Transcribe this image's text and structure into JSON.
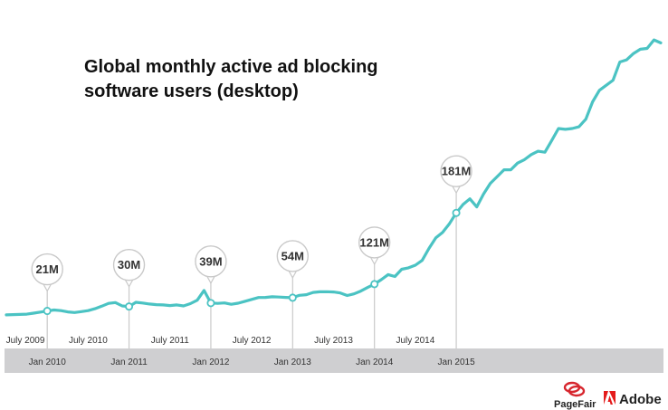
{
  "chart_data": {
    "type": "line",
    "title_lines": [
      "Global monthly active ad blocking",
      "software users (desktop)"
    ],
    "xlabel": "",
    "ylabel": "",
    "y_unit": "M",
    "ylim": [
      0,
      190
    ],
    "grid": false,
    "legend": "none",
    "x_ticks_top": [
      "July 2009",
      "July 2010",
      "July 2011",
      "July 2012",
      "July 2013",
      "July 2014"
    ],
    "x_ticks_bottom": [
      "Jan 2010",
      "Jan 2011",
      "Jan 2012",
      "Jan 2013",
      "Jan 2014",
      "Jan 2015"
    ],
    "series": [
      {
        "values": [
          19.5,
          19.7,
          19.8,
          20.0,
          20.6,
          21.3,
          22.0,
          22.6,
          22.2,
          21.4,
          21.0,
          21.6,
          22.2,
          23.4,
          25.0,
          26.8,
          27.3,
          25.2,
          24.8,
          27.5,
          27.0,
          26.4,
          26.0,
          25.8,
          25.4,
          25.8,
          25.2,
          26.6,
          28.8,
          35.0,
          27.0,
          26.8,
          27.1,
          26.2,
          26.9,
          28.1,
          29.3,
          30.5,
          30.6,
          31.0,
          30.8,
          30.6,
          30.4,
          31.9,
          32.3,
          33.7,
          34.1,
          34.2,
          34.0,
          33.4,
          31.8,
          32.8,
          34.6,
          36.9,
          39.0,
          41.8,
          45.0,
          43.8,
          48.4,
          49.3,
          51.0,
          54.0,
          61.6,
          68.3,
          71.8,
          77.2,
          84.1,
          89.4,
          93.0,
          87.9,
          96.0,
          102.8,
          107.1,
          111.4,
          111.4,
          115.6,
          117.8,
          121.0,
          123.1,
          122.5,
          129.9,
          137.5,
          137.0,
          137.5,
          138.6,
          143.4,
          154.4,
          161.7,
          164.9,
          168.1,
          179.6,
          181.0,
          185.0,
          187.7,
          188.2,
          193.6,
          191.7
        ]
      }
    ],
    "callouts": [
      {
        "label": "21M",
        "value": 21,
        "at": "Jan 2010"
      },
      {
        "label": "30M",
        "value": 30,
        "at": "Jan 2011"
      },
      {
        "label": "39M",
        "value": 39,
        "at": "Jan 2012"
      },
      {
        "label": "54M",
        "value": 54,
        "at": "Jan 2013"
      },
      {
        "label": "121M",
        "value": 121,
        "at": "Jan 2014"
      },
      {
        "label": "181M",
        "value": 181,
        "at": "Jan 2015"
      }
    ],
    "colors": {
      "line": "#4bc3c3",
      "axis_band": "#cfcfd1",
      "marker_fill": "#ffffff",
      "callout_border": "#c9c9c9",
      "callout_text": "#333333",
      "pagefair_red": "#d7262e",
      "adobe_red": "#e41b1b"
    }
  },
  "logos": {
    "pagefair": "PageFair",
    "adobe": "Adobe"
  }
}
